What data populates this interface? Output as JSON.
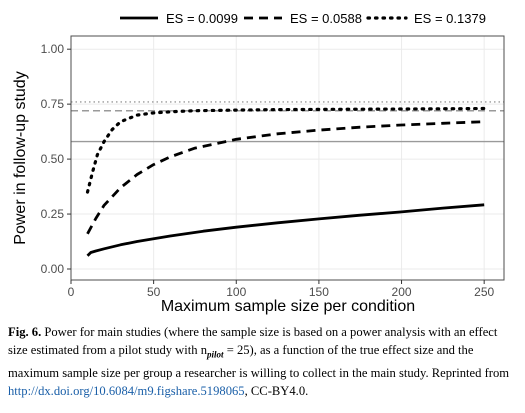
{
  "chart_data": {
    "type": "line",
    "title": "",
    "xlabel": "Maximum sample size per condition",
    "ylabel": "Power in follow-up study",
    "xlim": [
      0,
      262
    ],
    "ylim": [
      -0.05,
      1.06
    ],
    "x_ticks": [
      0,
      50,
      100,
      150,
      200,
      250
    ],
    "y_ticks": [
      0.0,
      0.25,
      0.5,
      0.75,
      1.0
    ],
    "x_tick_labels": [
      "0",
      "50",
      "100",
      "150",
      "200",
      "250"
    ],
    "y_tick_labels": [
      "0.00",
      "0.25",
      "0.50",
      "0.75",
      "1.00"
    ],
    "grid": true,
    "legend_position": "top",
    "series": [
      {
        "name": "ES = 0.0099",
        "style": "solid",
        "x": [
          10,
          12,
          15,
          20,
          30,
          40,
          50,
          60,
          80,
          100,
          125,
          150,
          175,
          200,
          225,
          250
        ],
        "y": [
          0.06,
          0.075,
          0.082,
          0.092,
          0.11,
          0.125,
          0.138,
          0.15,
          0.172,
          0.19,
          0.21,
          0.228,
          0.245,
          0.26,
          0.277,
          0.292
        ],
        "asymptote": 0.58
      },
      {
        "name": "ES = 0.0588",
        "style": "dashed",
        "x": [
          10,
          15,
          20,
          30,
          40,
          50,
          60,
          75,
          100,
          125,
          150,
          175,
          200,
          225,
          250
        ],
        "y": [
          0.16,
          0.23,
          0.29,
          0.37,
          0.43,
          0.475,
          0.51,
          0.55,
          0.59,
          0.615,
          0.632,
          0.645,
          0.655,
          0.663,
          0.67
        ],
        "asymptote": 0.72
      },
      {
        "name": "ES = 0.1379",
        "style": "dotted",
        "x": [
          10,
          13,
          16,
          20,
          25,
          30,
          40,
          50,
          60,
          75,
          100,
          125,
          150,
          175,
          200,
          225,
          250
        ],
        "y": [
          0.35,
          0.44,
          0.52,
          0.58,
          0.635,
          0.67,
          0.7,
          0.71,
          0.715,
          0.72,
          0.723,
          0.725,
          0.726,
          0.727,
          0.728,
          0.729,
          0.73
        ],
        "asymptote": 0.76
      }
    ]
  },
  "caption": {
    "label": "Fig. 6.",
    "text_1": " Power for main studies (where the sample size is based on a power analysis with an effect size estimated from a pilot study with n",
    "subscript": "pilot",
    "text_2": " = 25), as a function of the true effect size and the maximum sample size per group a researcher is willing to collect in the main study. Reprinted from ",
    "link": "http://dx.doi.org/10.6084/m9.figshare.5198065",
    "text_3": ", CC-BY4.0."
  }
}
